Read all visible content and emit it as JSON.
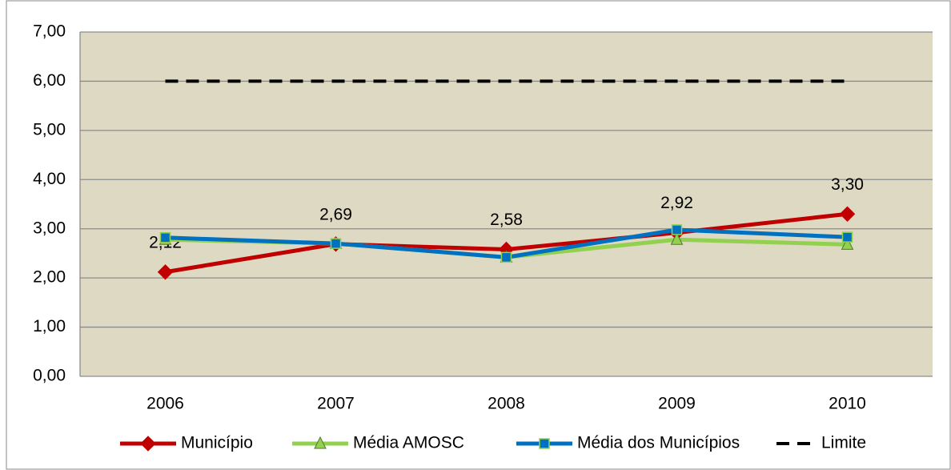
{
  "chart_data": {
    "type": "line",
    "categories": [
      "2006",
      "2007",
      "2008",
      "2009",
      "2010"
    ],
    "series": [
      {
        "name": "Município",
        "color": "#c00000",
        "marker": "diamond",
        "values": [
          2.12,
          2.69,
          2.58,
          2.92,
          3.3
        ],
        "value_labels": [
          "2,12",
          "2,69",
          "2,58",
          "2,92",
          "3,30"
        ]
      },
      {
        "name": "Média AMOSC",
        "color": "#92d050",
        "marker": "triangle",
        "values": [
          2.78,
          2.7,
          2.42,
          2.78,
          2.68
        ]
      },
      {
        "name": "Média dos Municípios",
        "color": "#0070c0",
        "marker": "square",
        "values": [
          2.82,
          2.7,
          2.42,
          2.98,
          2.83
        ]
      },
      {
        "name": "Limite",
        "color": "#000000",
        "dashed": true,
        "values": [
          6,
          6,
          6,
          6,
          6
        ]
      }
    ],
    "ylim": [
      0,
      7
    ],
    "yticks": [
      {
        "value": 0,
        "label": "0,00"
      },
      {
        "value": 1,
        "label": "1,00"
      },
      {
        "value": 2,
        "label": "2,00"
      },
      {
        "value": 3,
        "label": "3,00"
      },
      {
        "value": 4,
        "label": "4,00"
      },
      {
        "value": 5,
        "label": "5,00"
      },
      {
        "value": 6,
        "label": "6,00"
      },
      {
        "value": 7,
        "label": "7,00"
      }
    ],
    "grid": true,
    "legend": "bottom"
  }
}
